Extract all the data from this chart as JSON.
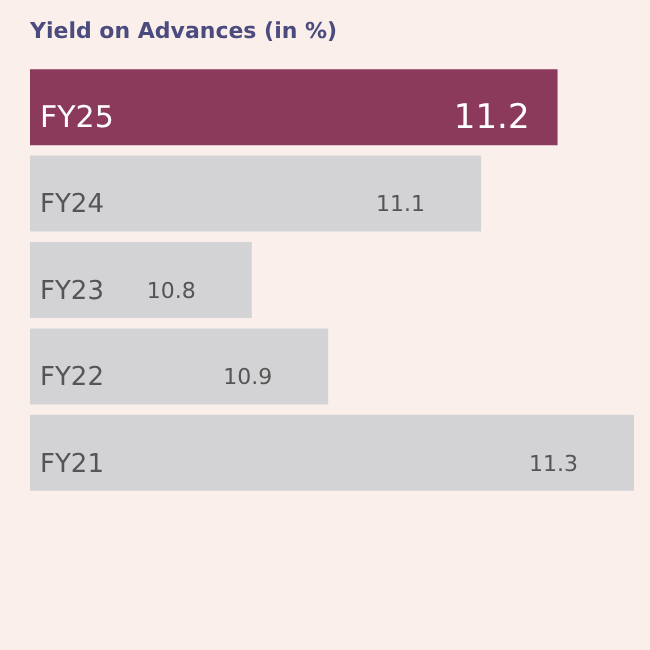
{
  "chart_data": {
    "type": "bar",
    "orientation": "horizontal",
    "title": "Yield on Advances (in %)",
    "categories": [
      "FY25",
      "FY24",
      "FY23",
      "FY22",
      "FY21"
    ],
    "values": [
      11.2,
      11.1,
      10.8,
      10.9,
      11.3
    ],
    "colors": [
      "#8c3a5c",
      "#d3d3d5",
      "#d3d3d5",
      "#d3d3d5",
      "#d3d3d5"
    ],
    "tick_labels": false,
    "legend": false,
    "data_labels": true
  }
}
